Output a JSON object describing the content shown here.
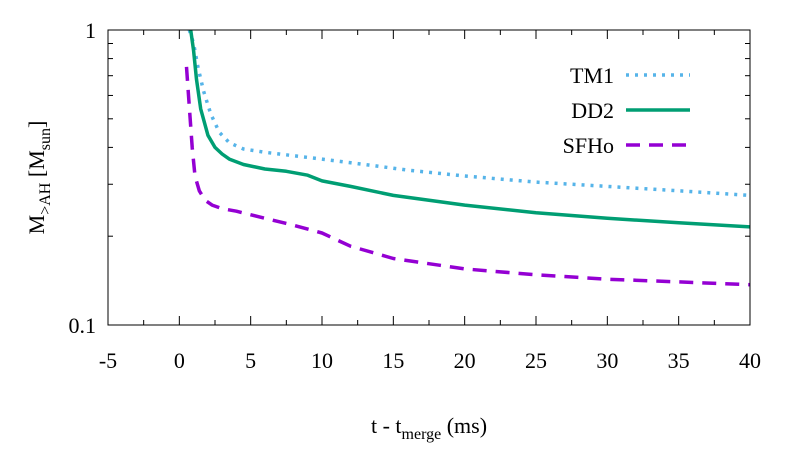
{
  "chart_data": {
    "type": "line",
    "title": "",
    "xlabel": {
      "main": "t - t",
      "sub": "merge",
      "tail": " (ms)"
    },
    "ylabel": {
      "main": "M",
      "sub": ">AH",
      "mid": " [M",
      "sub2": "sun",
      "tail": "]"
    },
    "xlim": [
      -5,
      40
    ],
    "ylim": [
      0.1,
      1
    ],
    "yscale": "log",
    "grid": false,
    "legend_position": "top-right",
    "x_ticks": [
      -5,
      0,
      5,
      10,
      15,
      20,
      25,
      30,
      35,
      40
    ],
    "x_tick_labels": [
      "-5",
      "0",
      "5",
      "10",
      "15",
      "20",
      "25",
      "30",
      "35",
      "40"
    ],
    "y_major_ticks": [
      0.1,
      1
    ],
    "y_tick_labels": [
      "0.1",
      "1"
    ],
    "y_minor_ticks": [
      0.2,
      0.3,
      0.4,
      0.5,
      0.6,
      0.7,
      0.8,
      0.9
    ],
    "series": [
      {
        "name": "TM1",
        "color": "#56b4e9",
        "style": "dotted",
        "x": [
          0.7,
          1.0,
          1.3,
          1.7,
          2.2,
          2.8,
          3.5,
          4.5,
          6,
          8,
          10,
          13,
          16,
          20,
          25,
          30,
          35,
          40
        ],
        "y": [
          1.0,
          0.9,
          0.75,
          0.62,
          0.52,
          0.45,
          0.415,
          0.395,
          0.385,
          0.375,
          0.365,
          0.35,
          0.335,
          0.32,
          0.305,
          0.295,
          0.285,
          0.275
        ]
      },
      {
        "name": "DD2",
        "color": "#009e73",
        "style": "solid",
        "x": [
          0.8,
          1.0,
          1.2,
          1.5,
          2.0,
          2.5,
          3.0,
          3.5,
          4.5,
          6,
          7.5,
          9,
          10,
          12,
          15,
          20,
          25,
          30,
          35,
          40
        ],
        "y": [
          1.0,
          0.85,
          0.68,
          0.54,
          0.44,
          0.4,
          0.38,
          0.365,
          0.35,
          0.338,
          0.332,
          0.322,
          0.308,
          0.295,
          0.275,
          0.255,
          0.24,
          0.23,
          0.222,
          0.215
        ]
      },
      {
        "name": "SFHo",
        "color": "#9400d3",
        "style": "dashed",
        "x": [
          0.5,
          0.7,
          0.9,
          1.1,
          1.4,
          1.8,
          2.3,
          3,
          4,
          6,
          8,
          10,
          12,
          15,
          20,
          25,
          30,
          35,
          40
        ],
        "y": [
          0.75,
          0.55,
          0.4,
          0.32,
          0.285,
          0.265,
          0.255,
          0.248,
          0.243,
          0.23,
          0.218,
          0.205,
          0.185,
          0.168,
          0.155,
          0.148,
          0.143,
          0.14,
          0.137
        ]
      }
    ]
  }
}
